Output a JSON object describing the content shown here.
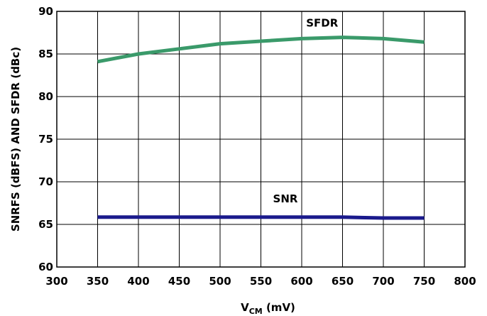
{
  "chart_data": {
    "type": "line",
    "title": "",
    "xlabel_main": "V",
    "xlabel_sub": "CM",
    "xlabel_unit": " (mV)",
    "ylabel": "SNRFS (dBFS) AND SFDR (dBc)",
    "xlim": [
      300,
      800
    ],
    "ylim": [
      60,
      90
    ],
    "xticks": [
      300,
      350,
      400,
      450,
      500,
      550,
      600,
      650,
      700,
      750,
      800
    ],
    "yticks": [
      60,
      65,
      70,
      75,
      80,
      85,
      90
    ],
    "grid": true,
    "series": [
      {
        "name": "SFDR",
        "color": "#3a9a6a",
        "points": [
          {
            "x": 350,
            "y": 84.1
          },
          {
            "x": 400,
            "y": 85.0
          },
          {
            "x": 450,
            "y": 85.6
          },
          {
            "x": 500,
            "y": 86.2
          },
          {
            "x": 550,
            "y": 86.5
          },
          {
            "x": 600,
            "y": 86.8
          },
          {
            "x": 650,
            "y": 86.95
          },
          {
            "x": 700,
            "y": 86.8
          },
          {
            "x": 750,
            "y": 86.4
          }
        ]
      },
      {
        "name": "SNR",
        "color": "#1a1a8c",
        "points": [
          {
            "x": 350,
            "y": 65.85
          },
          {
            "x": 400,
            "y": 65.85
          },
          {
            "x": 450,
            "y": 65.85
          },
          {
            "x": 500,
            "y": 65.85
          },
          {
            "x": 550,
            "y": 65.85
          },
          {
            "x": 600,
            "y": 65.85
          },
          {
            "x": 650,
            "y": 65.85
          },
          {
            "x": 700,
            "y": 65.75
          },
          {
            "x": 750,
            "y": 65.75
          }
        ]
      }
    ],
    "annotations": [
      {
        "text": "SFDR",
        "x": 625,
        "y": 88.2
      },
      {
        "text": "SNR",
        "x": 580,
        "y": 67.6
      }
    ]
  }
}
